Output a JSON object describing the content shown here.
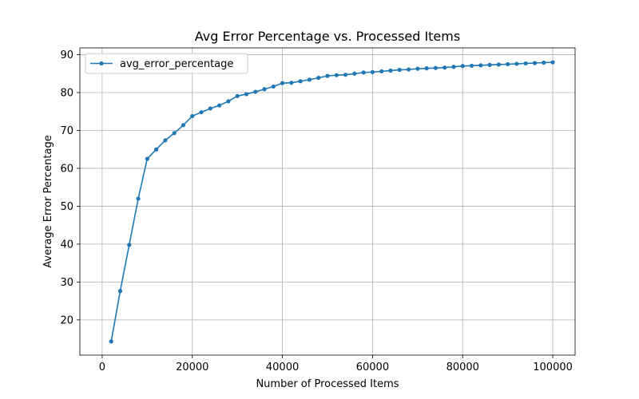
{
  "chart_data": {
    "type": "line",
    "title": "Avg Error Percentage vs. Processed Items",
    "xlabel": "Number of Processed Items",
    "ylabel": "Average Error Percentage",
    "xlim": [
      -4950,
      104950
    ],
    "ylim": [
      10.7,
      91.8
    ],
    "xticks": [
      0,
      20000,
      40000,
      60000,
      80000,
      100000
    ],
    "yticks": [
      20,
      30,
      40,
      50,
      60,
      70,
      80,
      90
    ],
    "grid": true,
    "legend": "top-left",
    "series": [
      {
        "name": "avg_error_percentage",
        "color": "#1f77b4",
        "x": [
          2000,
          4000,
          6000,
          8000,
          10000,
          12000,
          14000,
          16000,
          18000,
          20000,
          22000,
          24000,
          26000,
          28000,
          30000,
          32000,
          34000,
          36000,
          38000,
          40000,
          42000,
          44000,
          46000,
          48000,
          50000,
          52000,
          54000,
          56000,
          58000,
          60000,
          62000,
          64000,
          66000,
          68000,
          70000,
          72000,
          74000,
          76000,
          78000,
          80000,
          82000,
          84000,
          86000,
          88000,
          90000,
          92000,
          94000,
          96000,
          98000,
          100000
        ],
        "y": [
          14.3,
          27.6,
          39.8,
          52.0,
          62.5,
          65.0,
          67.4,
          69.3,
          71.4,
          73.8,
          74.8,
          75.8,
          76.6,
          77.7,
          79.1,
          79.6,
          80.2,
          80.9,
          81.6,
          82.5,
          82.6,
          83.0,
          83.4,
          83.9,
          84.4,
          84.6,
          84.7,
          85.0,
          85.3,
          85.4,
          85.6,
          85.8,
          86.0,
          86.1,
          86.3,
          86.4,
          86.5,
          86.6,
          86.8,
          87.0,
          87.1,
          87.2,
          87.3,
          87.4,
          87.5,
          87.6,
          87.7,
          87.8,
          87.9,
          88.0
        ]
      }
    ]
  }
}
